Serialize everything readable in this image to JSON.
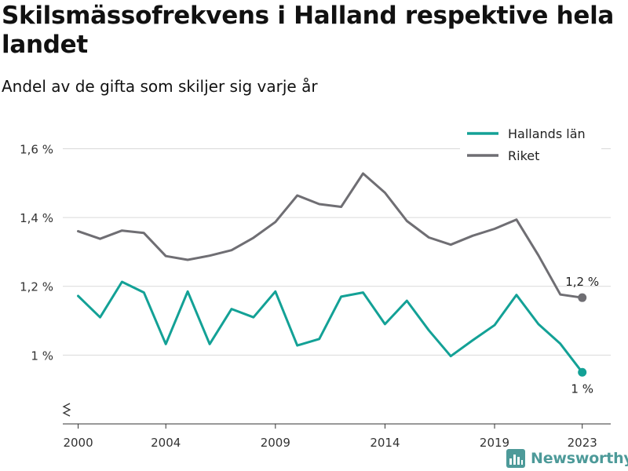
{
  "header": {
    "title": "Skilsmässofrekvens i Halland respektive hela landet",
    "subtitle": "Andel av de gifta som skiljer sig varje år"
  },
  "brand": {
    "name": "Newsworthy",
    "icon": "bar-chart-icon",
    "color": "#4d9a99"
  },
  "chart_data": {
    "type": "line",
    "x": [
      2000,
      2001,
      2002,
      2003,
      2004,
      2005,
      2006,
      2007,
      2008,
      2009,
      2010,
      2011,
      2012,
      2013,
      2014,
      2015,
      2016,
      2017,
      2018,
      2019,
      2020,
      2021,
      2022,
      2023
    ],
    "x_ticks": [
      2000,
      2004,
      2009,
      2014,
      2019,
      2023
    ],
    "y_ticks": [
      1.0,
      1.2,
      1.4,
      1.6
    ],
    "y_tick_labels": [
      "1 %",
      "1,2 %",
      "1,4 %",
      "1,6 %"
    ],
    "xlim": [
      1999.3,
      2024.3
    ],
    "ylim": [
      0.8,
      1.69
    ],
    "axis_break": true,
    "grid": true,
    "legend_position": "top-right",
    "series": [
      {
        "name": "Hallands län",
        "color": "#13a196",
        "values": [
          1.172,
          1.11,
          1.213,
          1.182,
          1.032,
          1.185,
          1.032,
          1.134,
          1.11,
          1.185,
          1.028,
          1.047,
          1.17,
          1.182,
          1.09,
          1.158,
          1.072,
          0.997,
          1.043,
          1.087,
          1.175,
          1.09,
          1.033,
          0.95
        ],
        "end_label": "1 %"
      },
      {
        "name": "Riket",
        "color": "#6f6e73",
        "values": [
          1.36,
          1.338,
          1.362,
          1.355,
          1.288,
          1.277,
          1.289,
          1.305,
          1.341,
          1.387,
          1.464,
          1.439,
          1.431,
          1.528,
          1.472,
          1.39,
          1.342,
          1.321,
          1.347,
          1.367,
          1.394,
          1.29,
          1.176,
          1.167
        ],
        "end_label": "1,2 %"
      }
    ]
  }
}
